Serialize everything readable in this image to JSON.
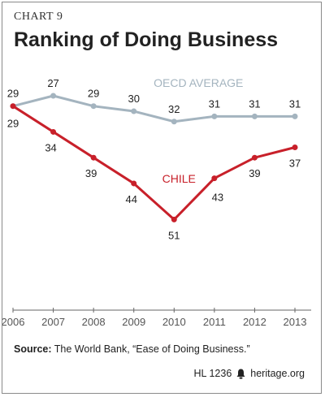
{
  "header": {
    "kicker": "CHART 9",
    "title": "Ranking of Doing Business"
  },
  "footer": {
    "source_label": "Source:",
    "source_text": "The World Bank, “Ease of Doing Business.”",
    "report_id": "HL 1236",
    "site": "heritage.org",
    "logo_icon": "bell-icon"
  },
  "colors": {
    "oecd": "#a4b4bf",
    "chile": "#c8202a",
    "axis_text": "#555555",
    "axis_line": "#666666"
  },
  "chart_data": {
    "type": "line",
    "categories": [
      "2006",
      "2007",
      "2008",
      "2009",
      "2010",
      "2011",
      "2012",
      "2013"
    ],
    "series": [
      {
        "name": "OECD AVERAGE",
        "values": [
          29,
          27,
          29,
          30,
          32,
          31,
          31,
          31
        ]
      },
      {
        "name": "CHILE",
        "values": [
          29,
          34,
          39,
          44,
          51,
          43,
          39,
          37
        ]
      }
    ],
    "y_axis_inverted": true,
    "grid": false,
    "data_labels": true
  }
}
